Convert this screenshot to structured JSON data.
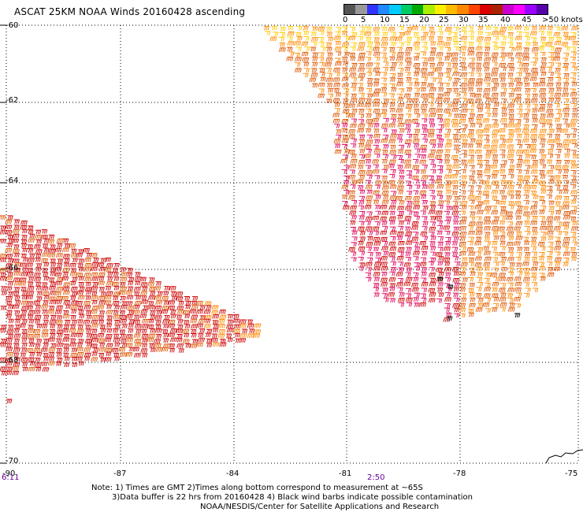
{
  "title": "ASCAT 25KM NOAA Winds 20160428 ascending",
  "colorbar": {
    "segments": [
      "#555555",
      "#999999",
      "#3333ff",
      "#2288ff",
      "#00ccff",
      "#00cc66",
      "#00aa00",
      "#aaee00",
      "#ffee00",
      "#ffbb00",
      "#ff8800",
      "#ff4400",
      "#dd0000",
      "#aa2200",
      "#cc00cc",
      "#ff00ff",
      "#9900ff",
      "#5500aa"
    ],
    "labels": [
      "0",
      "5",
      "10",
      "15",
      "20",
      "25",
      "30",
      "35",
      "40",
      "45",
      ">50 knots"
    ]
  },
  "map": {
    "lon_range": [
      -90,
      -75
    ],
    "lat_range": [
      -70,
      -60
    ],
    "lat_ticks": [
      "-60",
      "-62",
      "-64",
      "-66",
      "-68",
      "-70"
    ],
    "lon_ticks": [
      "-90",
      "-87",
      "-84",
      "-81",
      "-78",
      "-75"
    ],
    "time_labels": [
      "6:11",
      "2:50"
    ],
    "grid": "dotted"
  },
  "notes": [
    "Note: 1) Times are GMT 2)Times along bottom correspond to measurement at ~65S",
    "3)Data buffer is 22 hrs from 20160428 4) Black wind barbs indicate possible contamination",
    "NOAA/NESDIS/Center for Satellite Applications and Research"
  ],
  "colors": {
    "barb_yellow": "#ffcc00",
    "barb_orange": "#ff8800",
    "barb_darkorange": "#dd5500",
    "barb_red": "#cc0000",
    "barb_magenta": "#dd0055",
    "barb_contaminated": "#000000",
    "time_label": "#660099"
  }
}
